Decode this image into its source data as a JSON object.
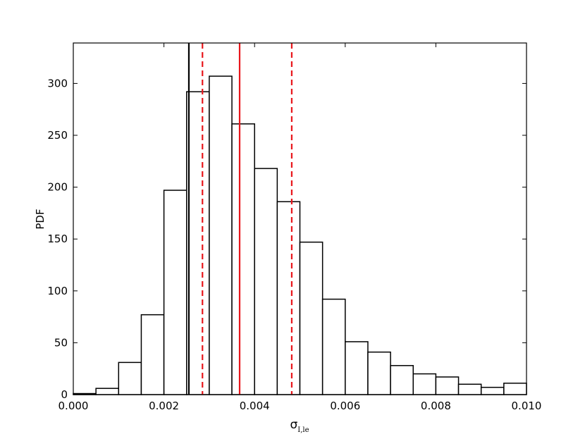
{
  "chart_data": {
    "type": "histogram",
    "xlabel": "σ",
    "xlabel_subscript": "I,le",
    "ylabel": "PDF",
    "bins": [
      0.0,
      0.0005,
      0.001,
      0.0015,
      0.002,
      0.0025,
      0.003,
      0.0035,
      0.004,
      0.0045,
      0.005,
      0.0055,
      0.006,
      0.0065,
      0.007,
      0.0075,
      0.008,
      0.0085,
      0.009,
      0.0095,
      0.01
    ],
    "values": [
      1,
      6,
      31,
      77,
      197,
      292,
      307,
      261,
      218,
      186,
      147,
      92,
      51,
      41,
      28,
      20,
      17,
      10,
      7,
      11
    ],
    "color": "#ffffff",
    "edgecolor": "#000000",
    "xlim": [
      0.0,
      0.01
    ],
    "ylim": [
      0,
      339
    ],
    "xticks": [
      {
        "value": 0.0,
        "label": "0.000"
      },
      {
        "value": 0.002,
        "label": "0.002"
      },
      {
        "value": 0.004,
        "label": "0.004"
      },
      {
        "value": 0.006,
        "label": "0.006"
      },
      {
        "value": 0.008,
        "label": "0.008"
      },
      {
        "value": 0.01,
        "label": "0.010"
      }
    ],
    "yticks": [
      0,
      50,
      100,
      150,
      200,
      250,
      300
    ],
    "vlines": [
      {
        "x": 0.00255,
        "color": "#000000",
        "style": "solid"
      },
      {
        "x": 0.00285,
        "color": "#e8161b",
        "style": "dashed"
      },
      {
        "x": 0.00367,
        "color": "#e8161b",
        "style": "solid"
      },
      {
        "x": 0.00482,
        "color": "#e8161b",
        "style": "dashed"
      }
    ]
  }
}
